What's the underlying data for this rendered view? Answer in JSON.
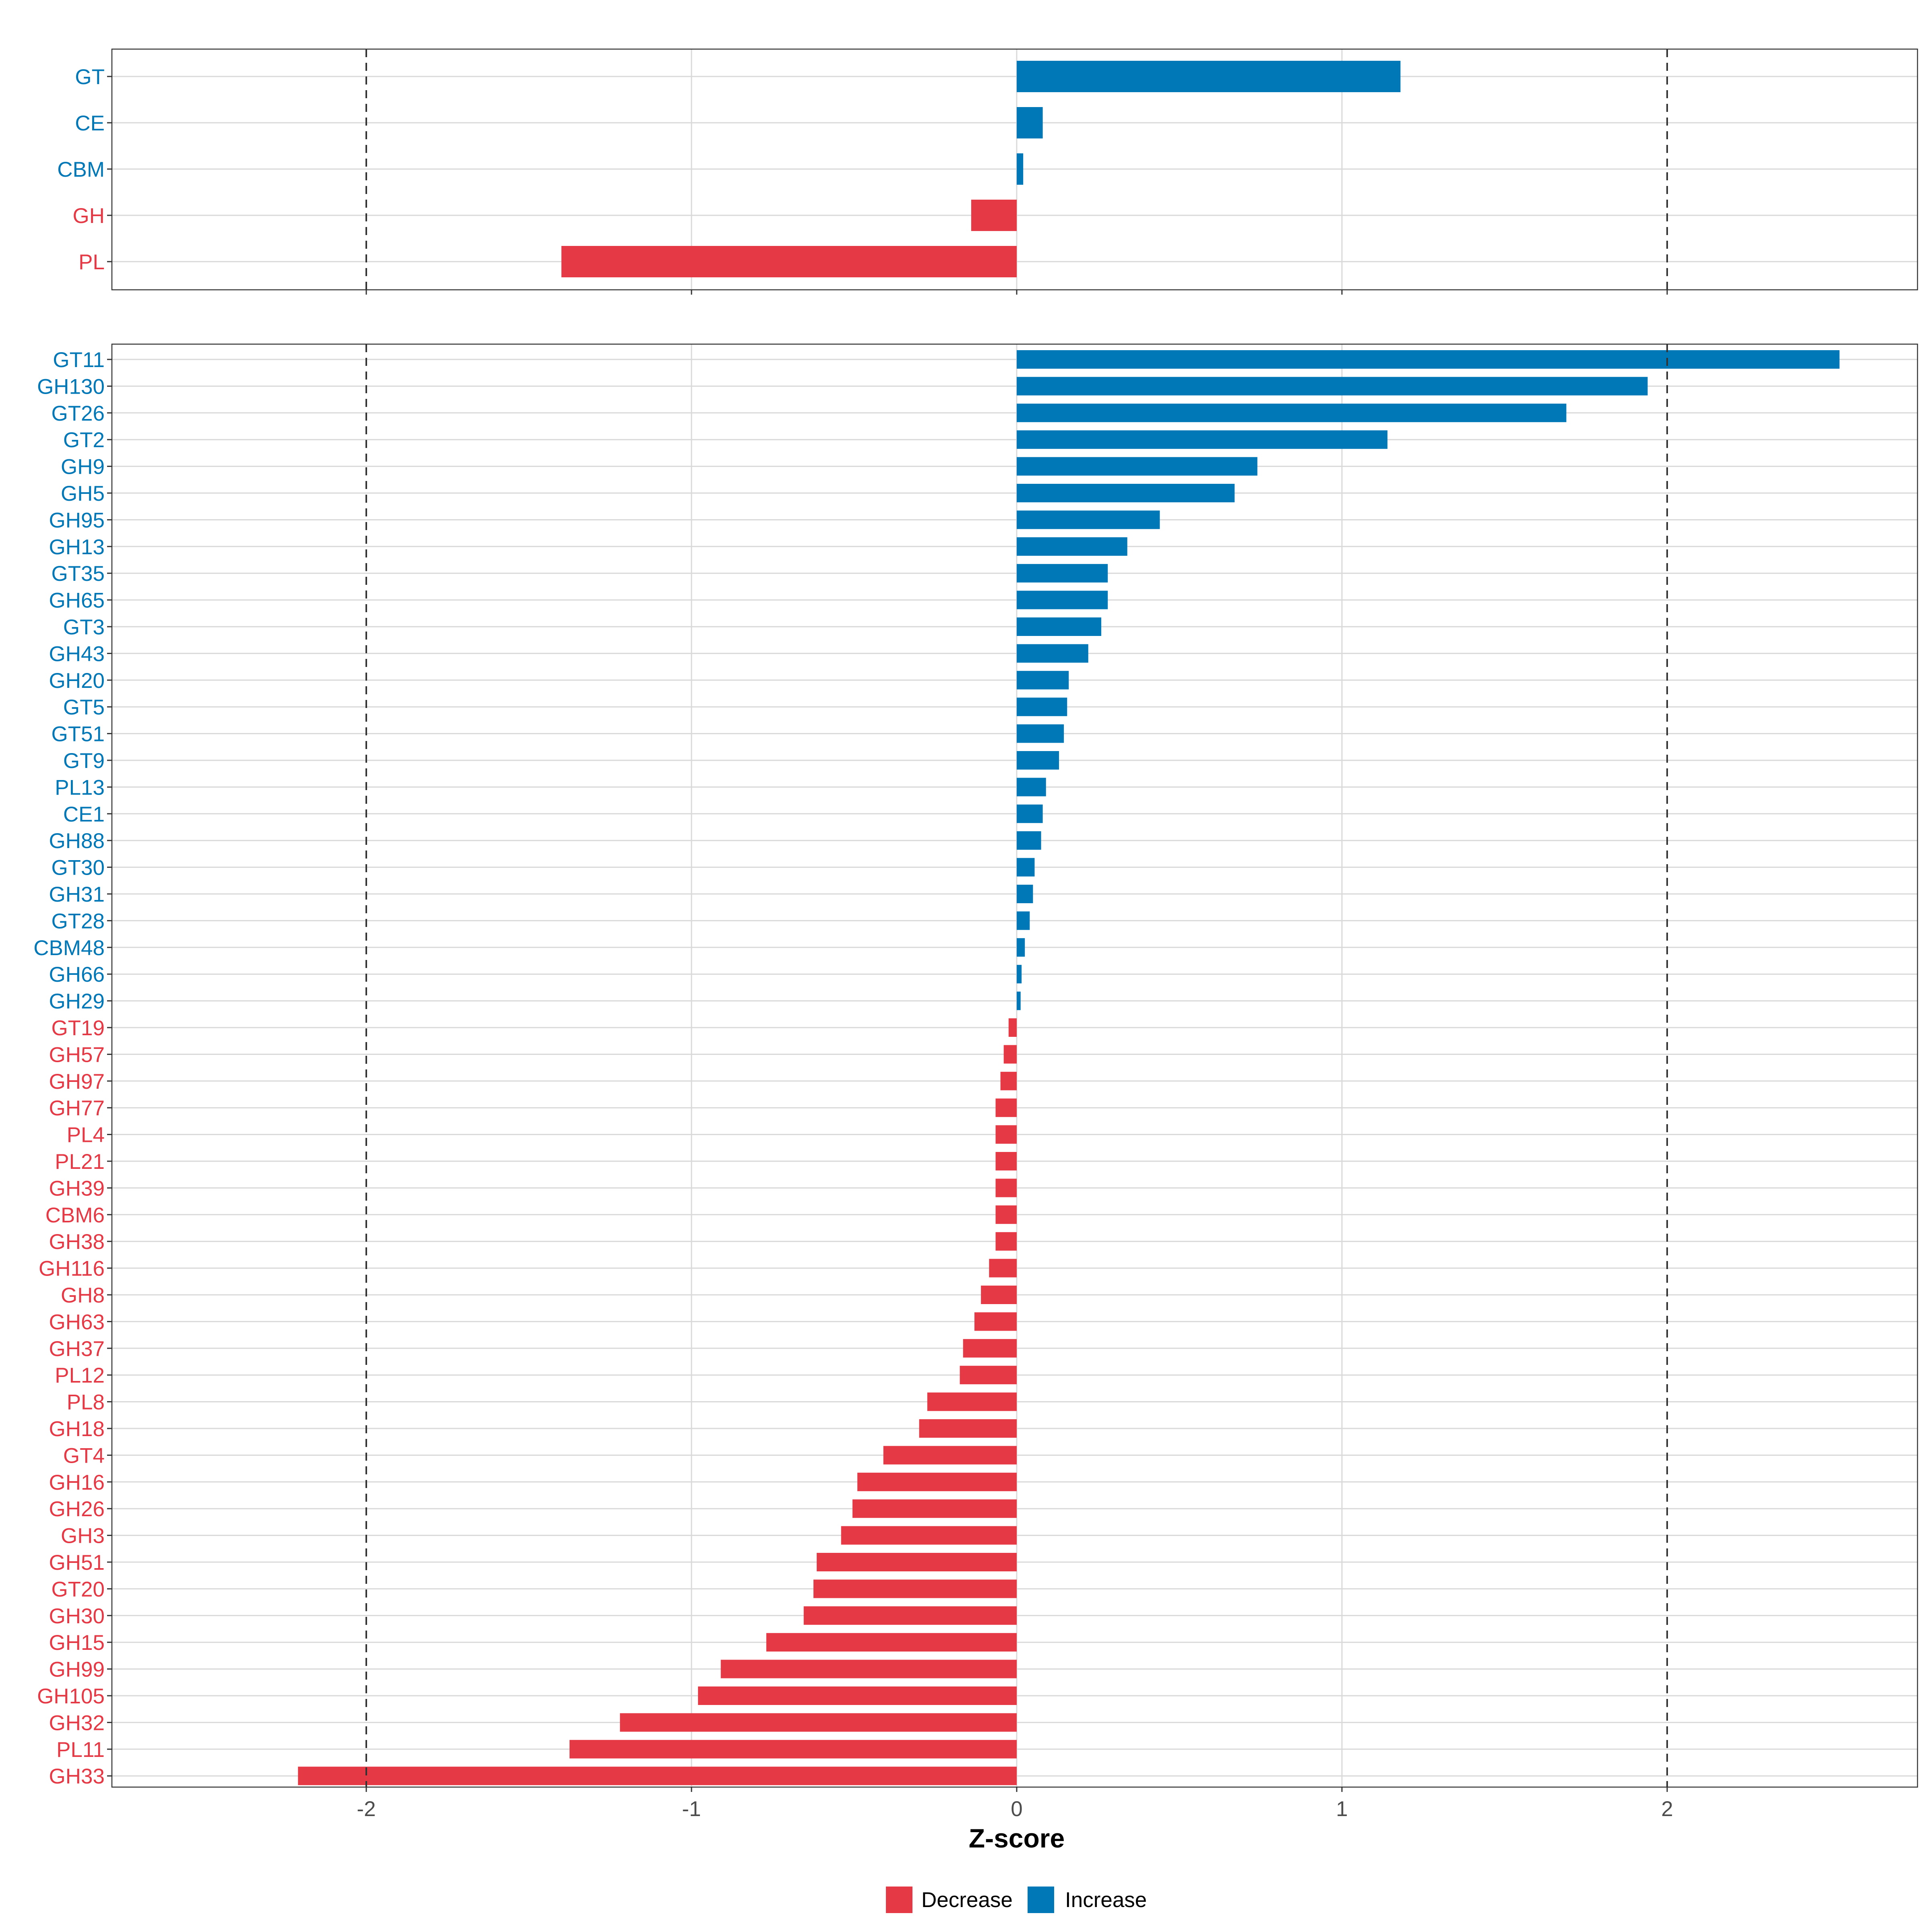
{
  "chart_data": {
    "type": "bar",
    "orientation": "horizontal",
    "xlabel": "Z-score",
    "xlim": [
      -2.62,
      2.8
    ],
    "x_ticks": [
      "-2",
      "-1",
      "0",
      "1",
      "2"
    ],
    "reference_lines": [
      -2,
      2
    ],
    "colors": {
      "Decrease": "#E63946",
      "Increase": "#0077B6"
    },
    "legend": {
      "position": "bottom",
      "entries": [
        "Decrease",
        "Increase"
      ]
    },
    "panels": [
      {
        "name": "family",
        "categories": [
          "GT",
          "CE",
          "CBM",
          "GH",
          "PL"
        ],
        "values": [
          1.18,
          0.08,
          0.02,
          -0.14,
          -1.4
        ],
        "direction": [
          "Increase",
          "Increase",
          "Increase",
          "Decrease",
          "Decrease"
        ]
      },
      {
        "name": "subfamily",
        "categories": [
          "GT11",
          "GH130",
          "GT26",
          "GT2",
          "GH9",
          "GH5",
          "GH95",
          "GH13",
          "GT35",
          "GH65",
          "GT3",
          "GH43",
          "GH20",
          "GT5",
          "GT51",
          "GT9",
          "PL13",
          "CE1",
          "GH88",
          "GT30",
          "GH31",
          "GT28",
          "CBM48",
          "GH66",
          "GH29",
          "GT19",
          "GH57",
          "GH97",
          "GH77",
          "PL4",
          "PL21",
          "GH39",
          "CBM6",
          "GH38",
          "GH116",
          "GH8",
          "GH63",
          "GH37",
          "PL12",
          "PL8",
          "GH18",
          "GT4",
          "GH16",
          "GH26",
          "GH3",
          "GH51",
          "GT20",
          "GH30",
          "GH15",
          "GH99",
          "GH105",
          "GH32",
          "PL11",
          "GH33"
        ],
        "values": [
          2.53,
          1.94,
          1.69,
          1.14,
          0.74,
          0.67,
          0.44,
          0.34,
          0.28,
          0.28,
          0.26,
          0.22,
          0.16,
          0.155,
          0.145,
          0.13,
          0.09,
          0.08,
          0.075,
          0.055,
          0.05,
          0.04,
          0.025,
          0.015,
          0.012,
          -0.025,
          -0.04,
          -0.05,
          -0.065,
          -0.065,
          -0.065,
          -0.065,
          -0.065,
          -0.065,
          -0.085,
          -0.11,
          -0.13,
          -0.165,
          -0.175,
          -0.275,
          -0.3,
          -0.41,
          -0.49,
          -0.505,
          -0.54,
          -0.615,
          -0.625,
          -0.655,
          -0.77,
          -0.91,
          -0.98,
          -1.22,
          -1.375,
          -2.21
        ],
        "direction": [
          "Increase",
          "Increase",
          "Increase",
          "Increase",
          "Increase",
          "Increase",
          "Increase",
          "Increase",
          "Increase",
          "Increase",
          "Increase",
          "Increase",
          "Increase",
          "Increase",
          "Increase",
          "Increase",
          "Increase",
          "Increase",
          "Increase",
          "Increase",
          "Increase",
          "Increase",
          "Increase",
          "Increase",
          "Increase",
          "Decrease",
          "Decrease",
          "Decrease",
          "Decrease",
          "Decrease",
          "Decrease",
          "Decrease",
          "Decrease",
          "Decrease",
          "Decrease",
          "Decrease",
          "Decrease",
          "Decrease",
          "Decrease",
          "Decrease",
          "Decrease",
          "Decrease",
          "Decrease",
          "Decrease",
          "Decrease",
          "Decrease",
          "Decrease",
          "Decrease",
          "Decrease",
          "Decrease",
          "Decrease",
          "Decrease",
          "Decrease",
          "Decrease"
        ]
      }
    ]
  }
}
